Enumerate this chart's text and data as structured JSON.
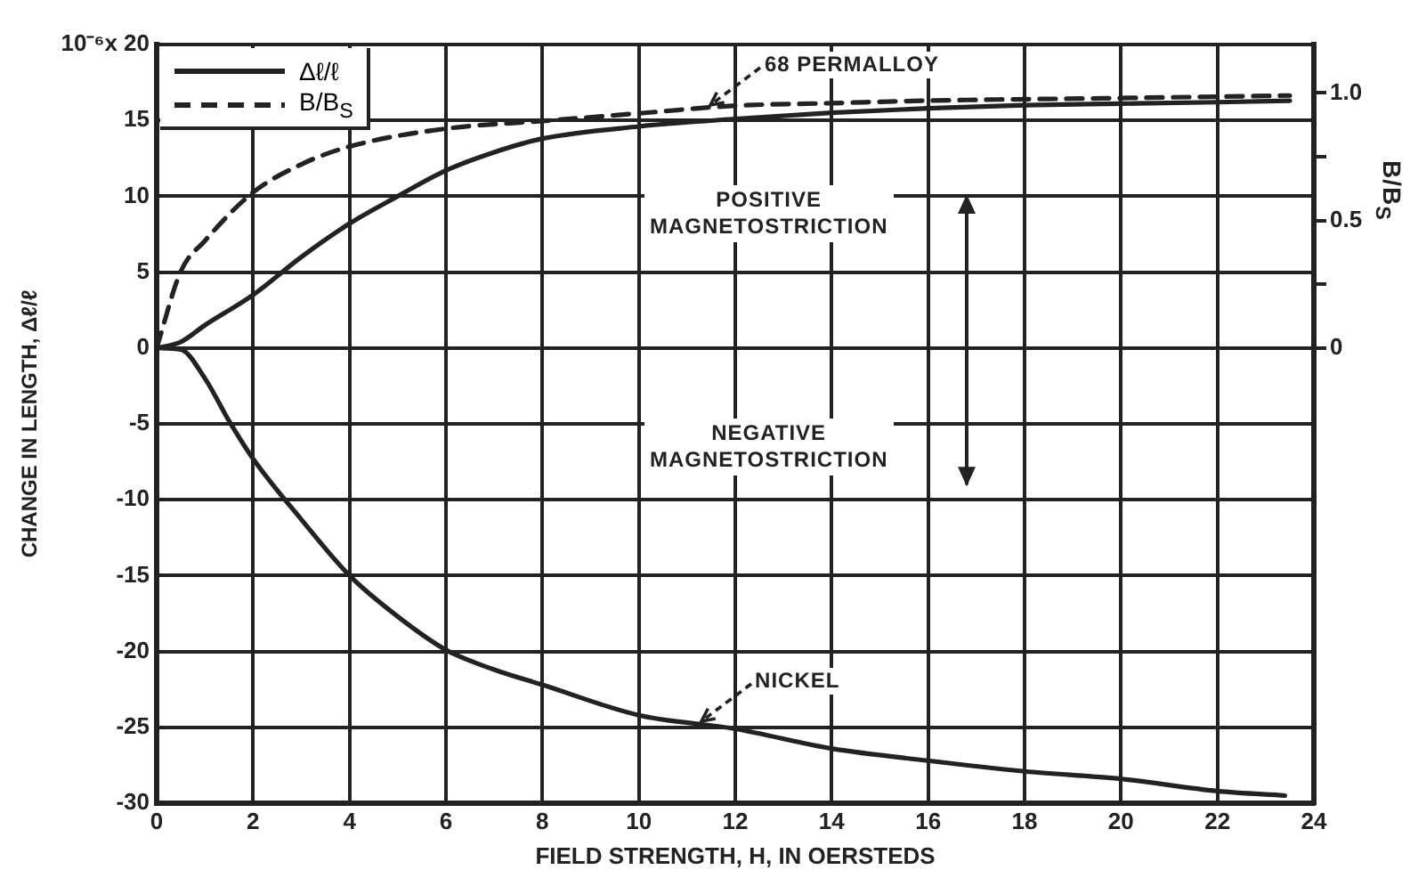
{
  "chart_data": {
    "type": "line",
    "xlabel": "FIELD STRENGTH, H, IN OERSTEDS",
    "ylabel": "CHANGE IN LENGTH, Δℓ/ℓ",
    "y2label": "B/B$_{S}$",
    "xlim": [
      0,
      24
    ],
    "xticks": [
      0,
      2,
      4,
      6,
      8,
      10,
      12,
      14,
      16,
      18,
      20,
      22,
      24
    ],
    "ylim": [
      -30,
      20
    ],
    "yticks": [
      -30,
      -25,
      -20,
      -15,
      -10,
      -5,
      0,
      5,
      10,
      15,
      {
        "value": 20,
        "label": "10⁻⁶x 20"
      }
    ],
    "y2lim": [
      -1.786,
      1.19
    ],
    "y2ticks": [
      0,
      {
        "value": 0.25,
        "label": null
      },
      0.5,
      {
        "value": 0.75,
        "label": null
      },
      {
        "value": 1,
        "label": "1.0"
      }
    ],
    "grid": true,
    "legend": "top left",
    "marker": "none",
    "series": [
      {
        "name": "Δℓ/ℓ",
        "color": "#222222",
        "line_style": "solid",
        "x": [
          0,
          0.5,
          1,
          2,
          3,
          4,
          5,
          6,
          7,
          8,
          10,
          12,
          14,
          16,
          18,
          20,
          22,
          23.5
        ],
        "values": [
          0,
          0.4,
          1.5,
          3.5,
          6,
          8.2,
          10,
          11.7,
          12.9,
          13.8,
          14.6,
          15.1,
          15.5,
          15.8,
          16,
          16.1,
          16.2,
          16.3
        ]
      },
      {
        "name": "B/B$_{S}$",
        "color": "#222222",
        "line_style": "dashed",
        "axis": "y2",
        "x": [
          0,
          0.5,
          1,
          2,
          3,
          4,
          6,
          8,
          10,
          12,
          14,
          16,
          20,
          23.5
        ],
        "values": [
          0,
          0.3,
          0.42,
          0.61,
          0.72,
          0.79,
          0.86,
          0.89,
          0.92,
          0.95,
          0.96,
          0.97,
          0.98,
          0.99
        ]
      },
      {
        "color": "#222222",
        "line_style": "solid",
        "x": [
          0,
          0.5,
          1,
          1.5,
          2,
          3,
          4,
          5,
          6,
          7,
          8,
          10,
          12,
          14,
          16,
          18,
          20,
          22,
          23.4
        ],
        "values": [
          0,
          -0.1,
          -2,
          -4.8,
          -7.3,
          -11.3,
          -15,
          -17.7,
          -19.9,
          -21.2,
          -22.2,
          -24.2,
          -25.1,
          -26.4,
          -27.2,
          -27.9,
          -28.4,
          -29.2,
          -29.5
        ]
      }
    ],
    "annotations": [
      {
        "text": "68 PERMALLOY",
        "x": 11.5,
        "y": 15.6
      },
      {
        "text": "NICKEL",
        "x": 11.3,
        "y": -25
      },
      "POSITIVE MAGNETOSTRICTION",
      "NEGATIVE MAGNETOSTRICTION"
    ]
  }
}
